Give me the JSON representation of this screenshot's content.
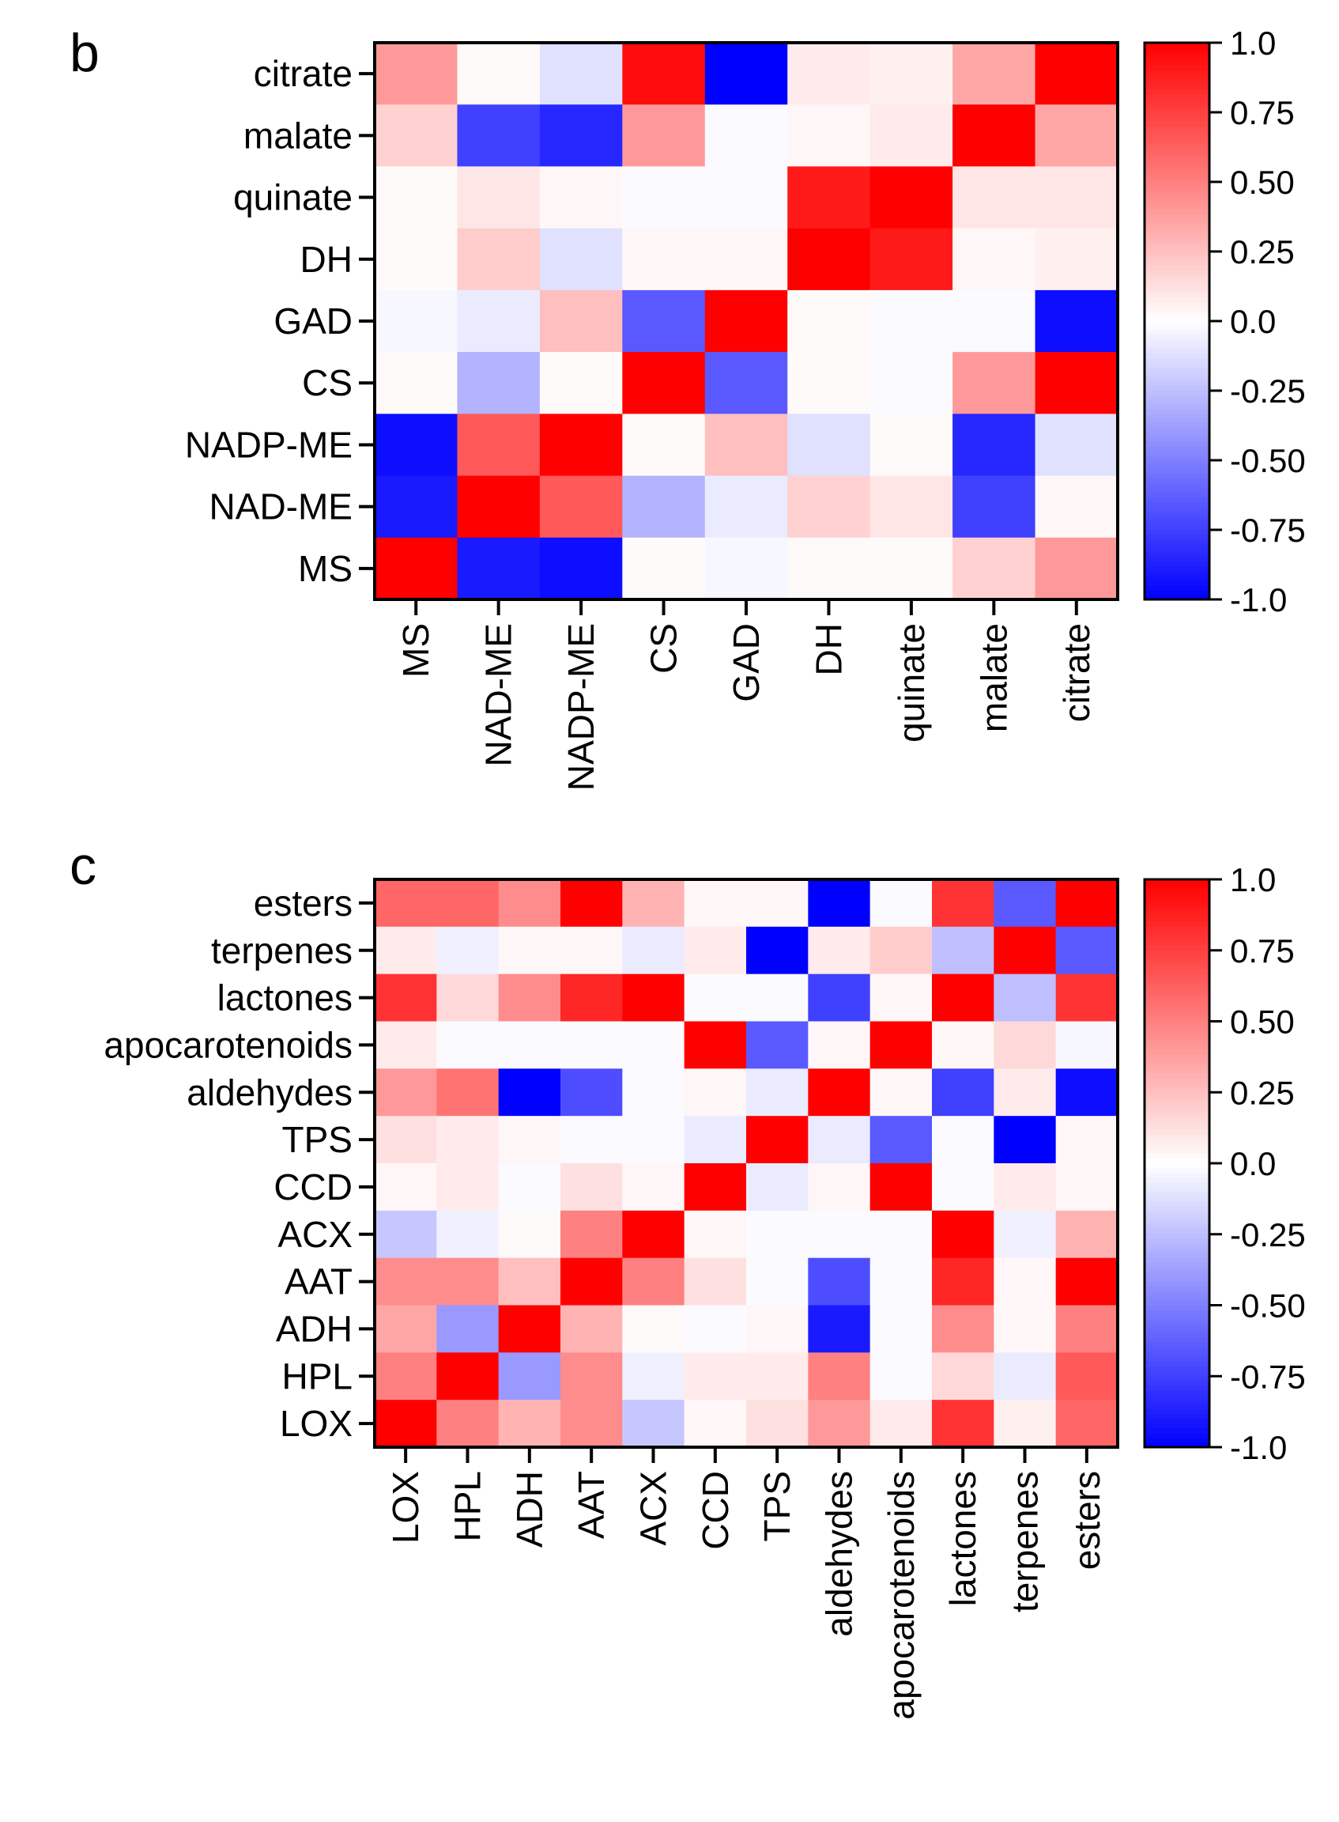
{
  "chart_data": [
    {
      "type": "heatmap",
      "panel_label": "b",
      "x_categories": [
        "MS",
        "NAD-ME",
        "NADP-ME",
        "CS",
        "GAD",
        "DH",
        "quinate",
        "malate",
        "citrate"
      ],
      "y_categories": [
        "citrate",
        "malate",
        "quinate",
        "DH",
        "GAD",
        "CS",
        "NADP-ME",
        "NAD-ME",
        "MS"
      ],
      "values": [
        [
          0.4,
          0.02,
          -0.12,
          0.95,
          -1.0,
          0.08,
          0.06,
          0.35,
          1.0
        ],
        [
          0.18,
          -0.75,
          -0.85,
          0.4,
          -0.02,
          0.03,
          0.08,
          1.0,
          0.35
        ],
        [
          0.02,
          0.1,
          0.03,
          -0.02,
          -0.02,
          0.9,
          1.0,
          0.1,
          0.1
        ],
        [
          0.02,
          0.2,
          -0.12,
          0.03,
          0.03,
          1.0,
          0.9,
          0.03,
          0.06
        ],
        [
          -0.03,
          -0.08,
          0.25,
          -0.65,
          1.0,
          0.02,
          -0.02,
          -0.02,
          -0.95
        ],
        [
          0.02,
          -0.3,
          0.02,
          1.0,
          -0.65,
          0.02,
          -0.02,
          0.4,
          1.0
        ],
        [
          -0.95,
          0.65,
          1.0,
          0.02,
          0.25,
          -0.12,
          0.02,
          -0.85,
          -0.12
        ],
        [
          -0.9,
          1.0,
          0.65,
          -0.3,
          -0.08,
          0.18,
          0.1,
          -0.75,
          0.03
        ],
        [
          1.0,
          -0.9,
          -0.95,
          0.02,
          -0.03,
          0.02,
          0.02,
          0.18,
          0.4
        ]
      ],
      "colorbar": {
        "ticks": [
          "1.0",
          "0.75",
          "0.50",
          "0.25",
          "0.0",
          "-0.25",
          "-0.50",
          "-0.75",
          "-1.0"
        ],
        "range": [
          -1.0,
          1.0
        ]
      },
      "colors": {
        "low": "#0000ff",
        "mid": "#ffffff",
        "high": "#ff0000"
      }
    },
    {
      "type": "heatmap",
      "panel_label": "c",
      "x_categories": [
        "LOX",
        "HPL",
        "ADH",
        "AAT",
        "ACX",
        "CCD",
        "TPS",
        "aldehydes",
        "apocarotenoids",
        "lactones",
        "terpenes",
        "esters"
      ],
      "y_categories": [
        "esters",
        "terpenes",
        "lactones",
        "apocarotenoids",
        "aldehydes",
        "TPS",
        "CCD",
        "ACX",
        "AAT",
        "ADH",
        "HPL",
        "LOX"
      ],
      "values": [
        [
          0.6,
          0.6,
          0.45,
          1.0,
          0.3,
          0.03,
          0.03,
          -1.0,
          -0.02,
          0.8,
          -0.65,
          1.0
        ],
        [
          0.08,
          -0.06,
          0.03,
          0.03,
          -0.08,
          0.08,
          -1.0,
          0.08,
          0.2,
          -0.25,
          1.0,
          -0.65
        ],
        [
          0.8,
          0.15,
          0.45,
          0.85,
          1.0,
          -0.02,
          -0.02,
          -0.75,
          0.03,
          1.0,
          -0.25,
          0.8
        ],
        [
          0.08,
          -0.02,
          -0.02,
          -0.02,
          -0.02,
          1.0,
          -0.65,
          0.03,
          1.0,
          0.03,
          0.15,
          -0.03
        ],
        [
          0.4,
          0.55,
          -1.0,
          -0.7,
          -0.02,
          0.03,
          -0.08,
          1.0,
          0.03,
          -0.75,
          0.08,
          -0.95
        ],
        [
          0.12,
          0.08,
          0.03,
          -0.02,
          -0.02,
          -0.08,
          1.0,
          -0.08,
          -0.65,
          -0.02,
          -1.0,
          0.03
        ],
        [
          0.03,
          0.08,
          -0.02,
          0.12,
          0.03,
          1.0,
          -0.08,
          0.03,
          1.0,
          -0.02,
          0.08,
          0.03
        ],
        [
          -0.22,
          -0.06,
          0.02,
          0.5,
          1.0,
          0.03,
          -0.02,
          -0.02,
          -0.02,
          1.0,
          -0.06,
          0.3
        ],
        [
          0.45,
          0.45,
          0.25,
          1.0,
          0.5,
          0.12,
          -0.02,
          -0.7,
          -0.02,
          0.85,
          0.03,
          1.0
        ],
        [
          0.35,
          -0.4,
          1.0,
          0.3,
          0.02,
          -0.02,
          0.03,
          -0.9,
          -0.02,
          0.45,
          0.03,
          0.5
        ],
        [
          0.5,
          1.0,
          -0.4,
          0.45,
          -0.06,
          0.08,
          0.08,
          0.5,
          -0.02,
          0.15,
          -0.08,
          0.65
        ],
        [
          1.0,
          0.5,
          0.3,
          0.45,
          -0.22,
          0.03,
          0.12,
          0.4,
          0.08,
          0.8,
          0.06,
          0.6
        ]
      ],
      "colorbar": {
        "ticks": [
          "1.0",
          "0.75",
          "0.50",
          "0.25",
          "0.0",
          "-0.25",
          "-0.50",
          "-0.75",
          "-1.0"
        ],
        "range": [
          -1.0,
          1.0
        ]
      },
      "colors": {
        "low": "#0000ff",
        "mid": "#ffffff",
        "high": "#ff0000"
      }
    }
  ]
}
